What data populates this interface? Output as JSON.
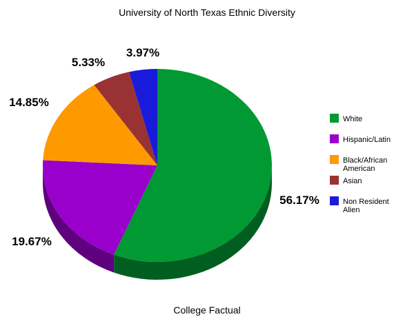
{
  "chart_data": {
    "type": "pie",
    "title": "University of North Texas Ethnic Diversity",
    "footer": "College Factual",
    "legend_position": "right",
    "slices": [
      {
        "name": "White",
        "value": 56.17,
        "label": "56.17%",
        "color": "#009933"
      },
      {
        "name": "Hispanic/Latin",
        "value": 19.67,
        "label": "19.67%",
        "color": "#9900cc"
      },
      {
        "name": "Black/African American",
        "value": 14.85,
        "label": "14.85%",
        "color": "#ff9900"
      },
      {
        "name": "Asian",
        "value": 5.33,
        "label": "5.33%",
        "color": "#993333"
      },
      {
        "name": "Non Resident Alien",
        "value": 3.97,
        "label": "3.97%",
        "color": "#1a1adb"
      }
    ]
  }
}
